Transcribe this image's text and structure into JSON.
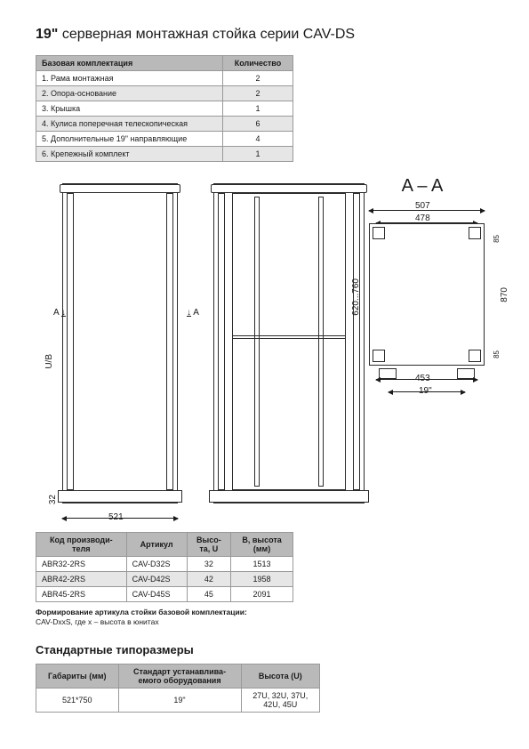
{
  "title_prefix": "19\"",
  "title_rest": " серверная монтажная стойка серии CAV-DS",
  "config_table": {
    "headers": [
      "Базовая комплектация",
      "Количество"
    ],
    "rows": [
      {
        "num": "1.",
        "name": "Рама монтажная",
        "qty": "2",
        "alt": false
      },
      {
        "num": "2.",
        "name": "Опора-основание",
        "qty": "2",
        "alt": true
      },
      {
        "num": "3.",
        "name": "Крышка",
        "qty": "1",
        "alt": false
      },
      {
        "num": "4.",
        "name": "Кулиса поперечная телескопическая",
        "qty": "6",
        "alt": true
      },
      {
        "num": "5.",
        "name": "Дополнительные 19\" направляющие",
        "qty": "4",
        "alt": false
      },
      {
        "num": "6.",
        "name": "Крепежный комплект",
        "qty": "1",
        "alt": true
      }
    ]
  },
  "diagram": {
    "section_label_A": "A",
    "section_title": "A – A",
    "ub_label": "U/B",
    "dim_521": "521",
    "dim_32": "32",
    "dim_507": "507",
    "dim_478": "478",
    "dim_453": "453",
    "dim_870": "870",
    "dim_620_760": "620...760",
    "dim_85": "85",
    "dim_19": "19\""
  },
  "models_table": {
    "headers": [
      "Код производи-\nтеля",
      "Артикул",
      "Высо-\nта, U",
      "B, высота\n(мм)"
    ],
    "rows": [
      {
        "code": "ABR32-2RS",
        "art": "CAV-D32S",
        "u": "32",
        "h": "1513",
        "alt": false
      },
      {
        "code": "ABR42-2RS",
        "art": "CAV-D42S",
        "u": "42",
        "h": "1958",
        "alt": true
      },
      {
        "code": "ABR45-2RS",
        "art": "CAV-D45S",
        "u": "45",
        "h": "2091",
        "alt": false
      }
    ]
  },
  "note_bold": "Формирование артикула стойки базовой комплектации:",
  "note_text": "CAV-DxxS, где x – высота в юнитах",
  "sizes_heading": "Стандартные типоразмеры",
  "sizes_table": {
    "headers": [
      "Габариты (мм)",
      "Стандарт устанавлива-\nемого оборудования",
      "Высота (U)"
    ],
    "row": {
      "dims": "521*750",
      "std": "19\"",
      "heights": "27U, 32U, 37U,\n42U, 45U"
    }
  },
  "colors": {
    "header_bg": "#b9b9b9",
    "alt_bg": "#e6e6e6",
    "border": "#999999",
    "line": "#2b2b2b",
    "text": "#1a1a1a",
    "page_bg": "#ffffff"
  }
}
